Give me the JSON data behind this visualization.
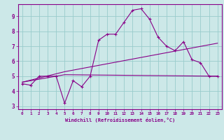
{
  "xlabel": "Windchill (Refroidissement éolien,°C)",
  "background_color": "#cce8e8",
  "line_color": "#880088",
  "grid_color": "#99cccc",
  "xlim": [
    -0.5,
    23.5
  ],
  "ylim": [
    2.8,
    9.8
  ],
  "yticks": [
    3,
    4,
    5,
    6,
    7,
    8,
    9
  ],
  "xticks": [
    0,
    1,
    2,
    3,
    4,
    5,
    6,
    7,
    8,
    9,
    10,
    11,
    12,
    13,
    14,
    15,
    16,
    17,
    18,
    19,
    20,
    21,
    22,
    23
  ],
  "curve1_x": [
    0,
    1,
    2,
    3,
    4,
    5,
    6,
    7,
    8,
    9,
    10,
    11,
    12,
    13,
    14,
    15,
    16,
    17,
    18,
    19,
    20,
    21,
    22,
    23
  ],
  "curve1_y": [
    4.5,
    4.4,
    5.0,
    5.0,
    5.0,
    3.2,
    4.7,
    4.3,
    5.0,
    7.4,
    7.8,
    7.8,
    8.6,
    9.4,
    9.5,
    8.8,
    7.6,
    7.0,
    6.7,
    7.3,
    6.1,
    5.9,
    5.0,
    5.0
  ],
  "curve2_x": [
    0,
    5,
    23
  ],
  "curve2_y": [
    4.6,
    5.3,
    7.2
  ],
  "curve3_x": [
    0,
    5,
    23
  ],
  "curve3_y": [
    4.6,
    5.1,
    5.0
  ]
}
